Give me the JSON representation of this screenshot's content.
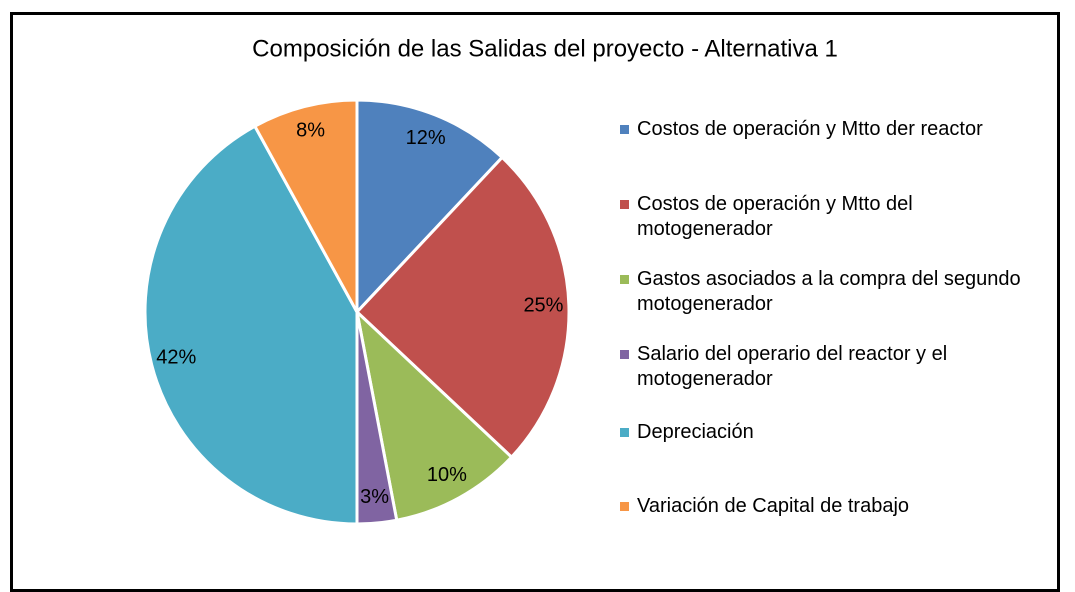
{
  "chart_data": {
    "type": "pie",
    "title": "Composición de las Salidas del proyecto - Alternativa 1",
    "categories": [
      "Costos de operación y Mtto der reactor",
      "Costos de operación y Mtto del motogenerador",
      "Gastos asociados a la compra del segundo motogenerador",
      "Salario del operario del reactor y el motogenerador",
      "Depreciación",
      "Variación de Capital de trabajo"
    ],
    "values": [
      12,
      25,
      10,
      3,
      42,
      8
    ],
    "value_labels": [
      "12%",
      "25%",
      "10%",
      "3%",
      "42%",
      "8%"
    ],
    "colors": [
      "#4f81bd",
      "#c0504d",
      "#9bbb59",
      "#8064a2",
      "#4bacc6",
      "#f79646"
    ],
    "legend": "right"
  }
}
